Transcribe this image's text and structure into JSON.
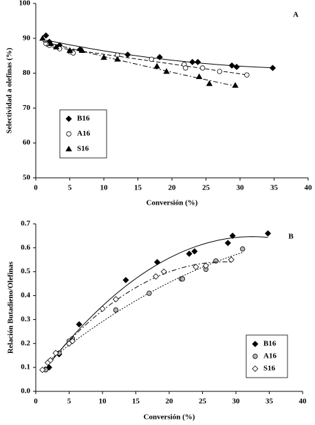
{
  "chart_data": [
    {
      "type": "scatter",
      "panel_label": "A",
      "x_label": "Conversión (%)",
      "y_label": "Selectividad a olefinas (%)",
      "xlim": [
        0,
        40
      ],
      "xticks": [
        0,
        5,
        10,
        15,
        20,
        25,
        30,
        35,
        40
      ],
      "ylim": [
        50,
        100
      ],
      "yticks": [
        50,
        60,
        70,
        80,
        90,
        100
      ],
      "legend": "lower left",
      "series": [
        {
          "name": "B16",
          "marker": "diamond",
          "color": "#000000",
          "trendline": "solid",
          "x": [
            1.5,
            2,
            3.5,
            6.5,
            13.5,
            18.2,
            23,
            23.8,
            28.8,
            29.5,
            34.8
          ],
          "values": [
            90.8,
            89,
            88,
            86.8,
            85.3,
            84.6,
            83.2,
            83.2,
            82.2,
            81.8,
            81.5
          ]
        },
        {
          "name": "A16",
          "marker": "circle",
          "color": "#ffffff",
          "trendline": "dashed",
          "x": [
            1.5,
            2,
            3.5,
            5,
            5.5,
            12,
            17,
            21.8,
            22,
            24.5,
            27,
            31
          ],
          "values": [
            88.5,
            88,
            87,
            86.2,
            85.8,
            85.2,
            84,
            82.5,
            81.5,
            81.5,
            80.5,
            79.5
          ]
        },
        {
          "name": "S16",
          "marker": "triangle",
          "color": "#000000",
          "trendline": "dashdot",
          "x": [
            1,
            2.2,
            3,
            5,
            6.8,
            10,
            12,
            17.8,
            19.2,
            24,
            25.5,
            29.3
          ],
          "values": [
            90,
            88.5,
            87.5,
            86.5,
            86.5,
            84.5,
            84,
            82,
            80.5,
            79,
            77,
            76.5
          ]
        }
      ]
    },
    {
      "type": "scatter",
      "panel_label": "B",
      "x_label": "Conversión (%)",
      "y_label": "Relación Butadieno/Olefinas",
      "xlim": [
        0,
        40
      ],
      "xticks": [
        0,
        5,
        10,
        15,
        20,
        25,
        30,
        35,
        40
      ],
      "ylim": [
        0,
        0.7
      ],
      "yticks": [
        {
          "value": 0,
          "label": "0.0"
        },
        0.1,
        0.2,
        0.3,
        0.4,
        0.5,
        0.6,
        0.7
      ],
      "legend": "lower right",
      "series": [
        {
          "name": "B16",
          "marker": "diamond",
          "color": "#000000",
          "trendline": "solid",
          "x": [
            2,
            3.5,
            6.5,
            13.5,
            18.2,
            23,
            23.8,
            28.8,
            29.5,
            34.8
          ],
          "values": [
            0.1,
            0.155,
            0.28,
            0.465,
            0.54,
            0.575,
            0.585,
            0.62,
            0.65,
            0.66
          ]
        },
        {
          "name": "A16",
          "marker": "circle",
          "color": "#b4b4b4",
          "trendline": "dotted",
          "x": [
            1.5,
            3.5,
            5,
            5.5,
            12,
            17,
            21.8,
            22,
            25.5,
            27,
            31
          ],
          "values": [
            0.09,
            0.16,
            0.21,
            0.22,
            0.34,
            0.41,
            0.47,
            0.47,
            0.51,
            0.545,
            0.595
          ]
        },
        {
          "name": "S16",
          "marker": "diamond",
          "color": "#ffffff",
          "trendline": "dashdot",
          "x": [
            1,
            1.8,
            2.2,
            3,
            5,
            5.5,
            10,
            12,
            18,
            19.2,
            24,
            25.5,
            29.3
          ],
          "values": [
            0.09,
            0.12,
            0.13,
            0.16,
            0.2,
            0.21,
            0.345,
            0.385,
            0.48,
            0.5,
            0.52,
            0.525,
            0.55
          ]
        }
      ]
    }
  ]
}
